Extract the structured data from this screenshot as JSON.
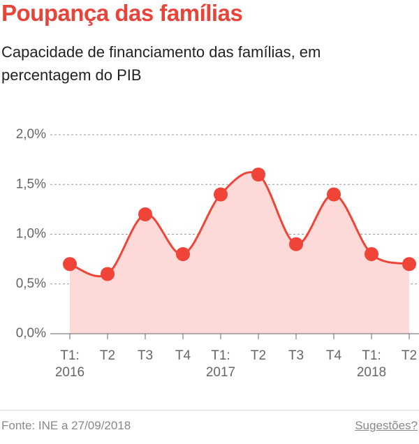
{
  "chart_data": {
    "type": "line",
    "title": "Poupança das famílias",
    "subtitle": "Capacidade de financiamento das famílias, em percentagem do PIB",
    "categories": [
      "T1: 2016",
      "T2",
      "T3",
      "T4",
      "T1: 2017",
      "T2",
      "T3",
      "T4",
      "T1: 2018",
      "T2"
    ],
    "values": [
      0.7,
      0.6,
      1.2,
      0.8,
      1.4,
      1.6,
      0.9,
      1.4,
      0.8,
      0.7
    ],
    "color": "#f04438",
    "area_color": "#fdd9d7",
    "ylim": [
      0,
      2
    ],
    "yticks": [
      {
        "value": 0,
        "label": "0,0%"
      },
      {
        "value": 0.5,
        "label": "0,5%"
      },
      {
        "value": 1,
        "label": "1,0%"
      },
      {
        "value": 1.5,
        "label": "1,5%"
      },
      {
        "value": 2,
        "label": "2,0%"
      }
    ],
    "grid": true
  },
  "source": "Fonte: INE a 27/09/2018",
  "link": "Sugestões?"
}
